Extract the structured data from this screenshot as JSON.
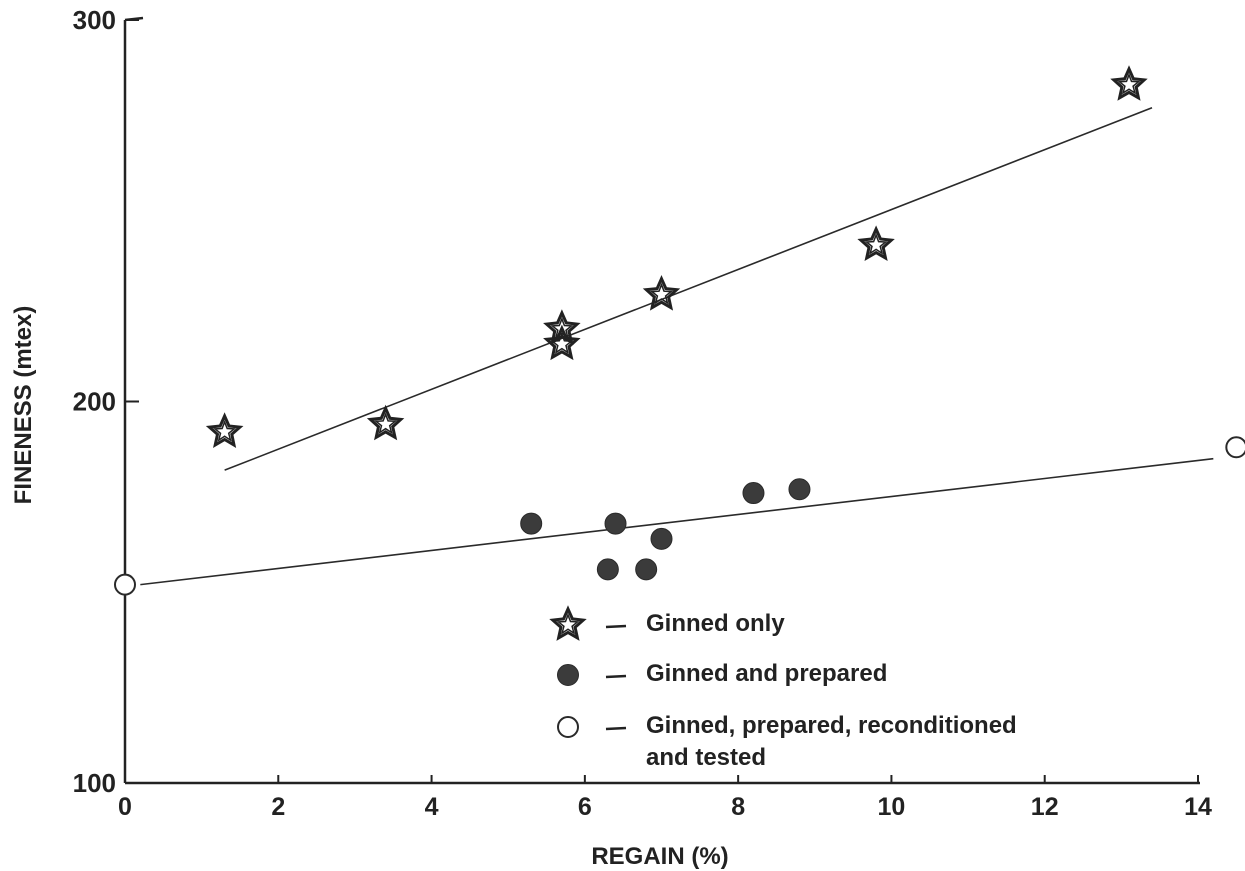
{
  "chart_data": {
    "type": "scatter",
    "xlabel": "REGAIN (%)",
    "ylabel": "FINENESS (mtex)",
    "xlim": [
      0,
      14.5
    ],
    "ylim": [
      100,
      300
    ],
    "x_ticks": [
      0,
      2,
      4,
      6,
      8,
      10,
      12,
      14
    ],
    "y_ticks": [
      100,
      200,
      300
    ],
    "x_tick_labels": [
      "0",
      "2",
      "4",
      "6",
      "8",
      "10",
      "12",
      "14"
    ],
    "y_tick_labels": [
      "100",
      "200",
      "300"
    ],
    "grid": false,
    "legend_position": "center-bottom",
    "series": [
      {
        "name": "Ginned only",
        "marker": "star",
        "points": [
          {
            "x": 1.3,
            "y": 192
          },
          {
            "x": 3.4,
            "y": 194
          },
          {
            "x": 5.7,
            "y": 219
          },
          {
            "x": 5.7,
            "y": 215
          },
          {
            "x": 7.0,
            "y": 228
          },
          {
            "x": 9.8,
            "y": 241
          },
          {
            "x": 13.1,
            "y": 283
          }
        ]
      },
      {
        "name": "Ginned and prepared",
        "marker": "filled-circle",
        "points": [
          {
            "x": 5.3,
            "y": 168
          },
          {
            "x": 6.4,
            "y": 168
          },
          {
            "x": 6.3,
            "y": 156
          },
          {
            "x": 6.8,
            "y": 156
          },
          {
            "x": 7.0,
            "y": 164
          },
          {
            "x": 8.2,
            "y": 176
          },
          {
            "x": 8.8,
            "y": 177
          }
        ]
      },
      {
        "name": "Ginned, prepared, reconditioned and tested",
        "name_lines": [
          "Ginned, prepared, reconditioned",
          "and tested"
        ],
        "marker": "open-circle",
        "points": [
          {
            "x": 0.0,
            "y": 152
          },
          {
            "x": 14.5,
            "y": 188
          }
        ]
      }
    ],
    "trend_lines": [
      {
        "x": [
          1.3,
          13.4
        ],
        "y": [
          182,
          277
        ]
      },
      {
        "x": [
          0.2,
          14.2
        ],
        "y": [
          152,
          185
        ]
      }
    ]
  }
}
